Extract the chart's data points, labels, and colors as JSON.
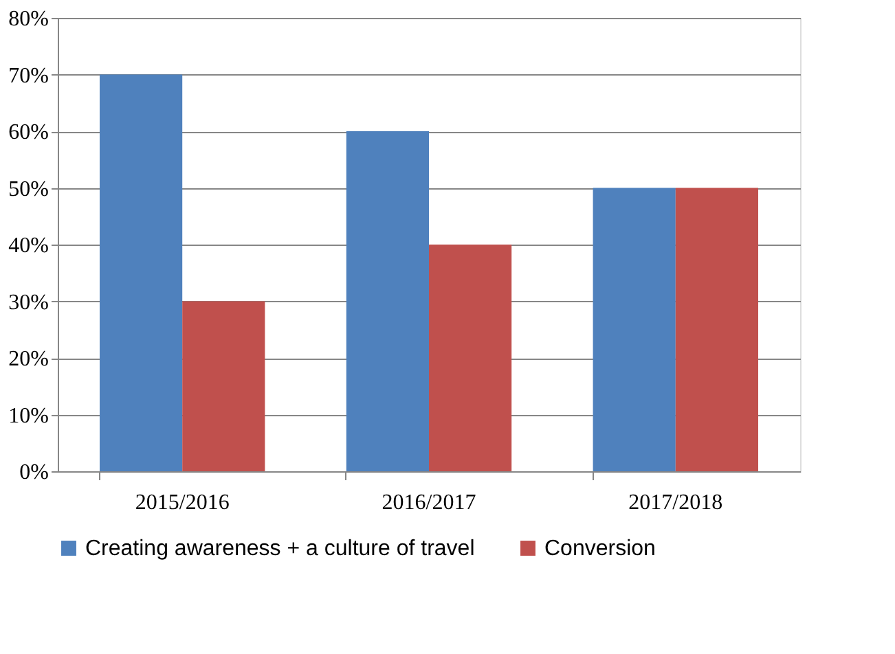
{
  "chart_data": {
    "type": "bar",
    "categories": [
      "2015/2016",
      "2016/2017",
      "2017/2018"
    ],
    "series": [
      {
        "name": "Creating awareness + a culture of travel",
        "color": "#4f81bd",
        "values": [
          70,
          60,
          50
        ]
      },
      {
        "name": "Conversion",
        "color": "#c0504d",
        "values": [
          30,
          40,
          50
        ]
      }
    ],
    "ylim": [
      0,
      80
    ],
    "yticks": [
      {
        "value": 0,
        "label": "0%"
      },
      {
        "value": 10,
        "label": "10%"
      },
      {
        "value": 20,
        "label": "20%"
      },
      {
        "value": 30,
        "label": "30%"
      },
      {
        "value": 40,
        "label": "40%"
      },
      {
        "value": 50,
        "label": "50%"
      },
      {
        "value": 60,
        "label": "60%"
      },
      {
        "value": 70,
        "label": "70%"
      },
      {
        "value": 80,
        "label": "80%"
      }
    ],
    "grid": "y",
    "legend": "bottom"
  }
}
